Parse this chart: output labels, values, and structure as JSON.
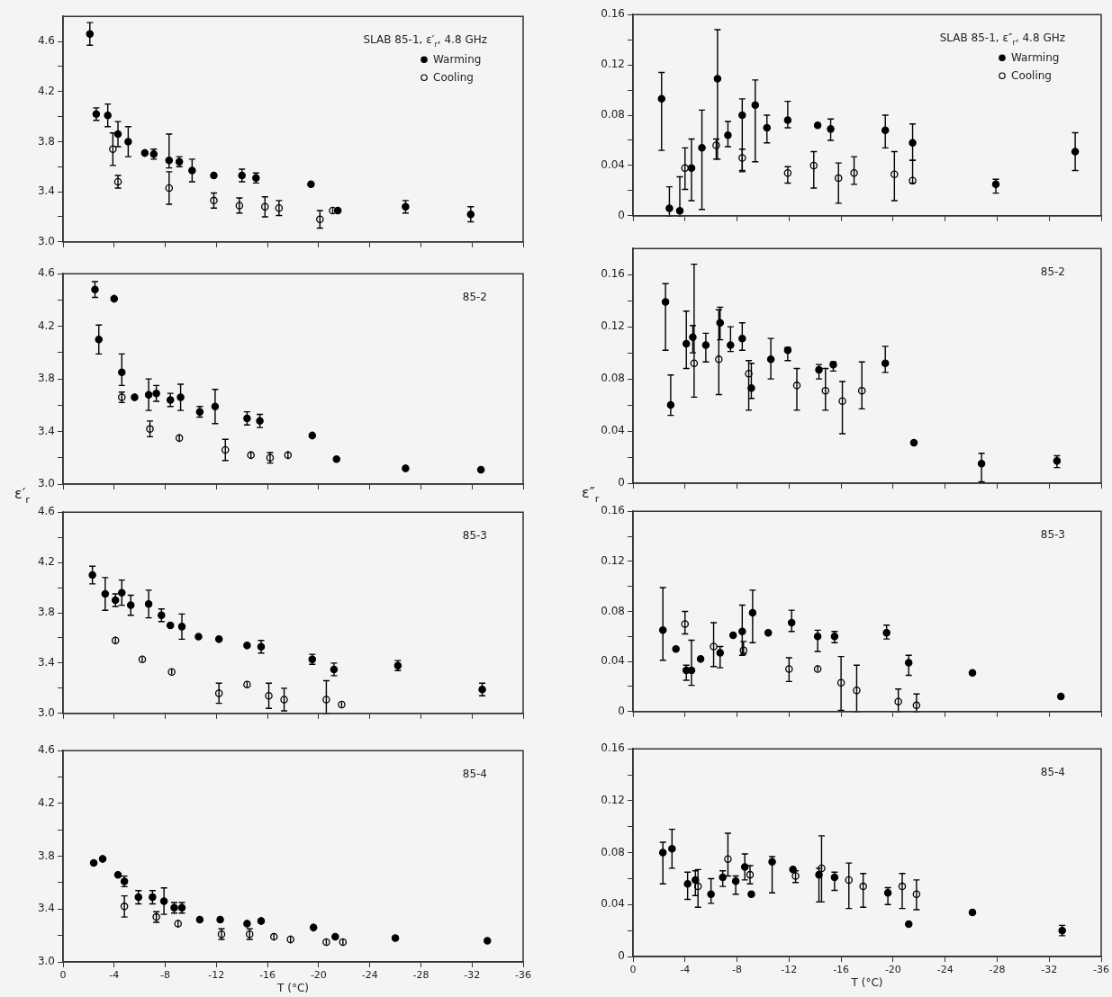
{
  "chart_data": [
    {
      "type": "scatter",
      "title": "SLAB 85-1, ε′$_{r}$, 4.8 GHz",
      "legend": "top right",
      "marker": "circle",
      "tick_labels": "y",
      "xlim": [
        0,
        -36
      ],
      "xticks": [
        0,
        -4,
        -8,
        -12,
        -16,
        -20,
        -24,
        -28,
        -32,
        -36
      ],
      "ylim": [
        3.0,
        4.8
      ],
      "yticks": [
        {
          "value": 3,
          "label": "3.0"
        },
        {
          "value": 3.2,
          "label": null
        },
        3.4,
        {
          "value": 3.6,
          "label": null
        },
        3.8,
        {
          "value": 4,
          "label": null
        },
        4.2,
        {
          "value": 4.4,
          "label": null
        },
        4.6
      ],
      "series": [
        {
          "name": "Warming",
          "color": "#000000",
          "x": [
            -2.1,
            -2.6,
            -3.5,
            -4.3,
            -5.1,
            -6.4,
            -7.1,
            -8.3,
            -9.1,
            -10.1,
            -11.8,
            -14.0,
            -15.1,
            -19.4,
            -21.5,
            -26.8,
            -31.9
          ],
          "values": [
            4.66,
            4.02,
            4.01,
            3.86,
            3.8,
            3.71,
            3.7,
            3.65,
            3.64,
            3.57,
            3.53,
            3.53,
            3.51,
            3.46,
            3.25,
            3.28,
            3.22
          ],
          "errors": [
            0.09,
            0.05,
            0.09,
            0.1,
            0.12,
            0.03,
            0.04,
            [
              3.59,
              3.86
            ],
            0.04,
            0.09,
            0.02,
            0.05,
            0.04,
            0.02,
            0.02,
            0.05,
            0.06
          ]
        },
        {
          "name": "Cooling",
          "color": "#000000",
          "x": [
            -3.9,
            -4.3,
            -8.3,
            -11.8,
            -13.8,
            -15.8,
            -16.9,
            -20.1,
            -21.1
          ],
          "values": [
            3.74,
            3.48,
            3.43,
            3.33,
            3.29,
            3.28,
            3.27,
            3.18,
            3.25
          ],
          "errors": [
            0.13,
            0.05,
            0.13,
            0.06,
            0.06,
            0.08,
            0.06,
            0.07,
            0.02
          ]
        }
      ]
    },
    {
      "type": "scatter",
      "title": "SLAB 85-1, ε″$_{r}$, 4.8 GHz",
      "legend": "top right",
      "marker": "circle",
      "tick_labels": "y",
      "xlim": [
        0,
        -36
      ],
      "xticks": [
        0,
        -4,
        -8,
        -12,
        -16,
        -20,
        -24,
        -28,
        -32,
        -36
      ],
      "ylim": [
        0,
        0.16
      ],
      "yticks": [
        0,
        {
          "value": 0.02,
          "label": null
        },
        0.04,
        {
          "value": 0.06,
          "label": null
        },
        0.08,
        {
          "value": 0.1,
          "label": null
        },
        0.12,
        {
          "value": 0.14,
          "label": null
        },
        0.16
      ],
      "series": [
        {
          "name": "Warming",
          "color": "#000000",
          "x": [
            -2.2,
            -2.8,
            -3.6,
            -4.5,
            -5.3,
            -6.5,
            -7.3,
            -8.4,
            -9.4,
            -10.3,
            -11.9,
            -14.2,
            -15.2,
            -19.4,
            -21.5,
            -27.9,
            -34.0
          ],
          "values": [
            0.093,
            0.006,
            0.004,
            0.038,
            0.054,
            0.109,
            0.064,
            0.08,
            0.088,
            0.07,
            0.076,
            0.072,
            0.069,
            0.068,
            0.058,
            0.025,
            0.051
          ],
          "errors": [
            [
              0.052,
              0.114
            ],
            [
              0,
              0.023
            ],
            [
              0,
              0.031
            ],
            [
              0.012,
              0.061
            ],
            [
              0.005,
              0.084
            ],
            [
              0.045,
              0.148
            ],
            [
              0.055,
              0.075
            ],
            [
              0.036,
              0.093
            ],
            [
              0.043,
              0.108
            ],
            [
              0.058,
              0.08
            ],
            [
              0.07,
              0.091
            ],
            0.002,
            [
              0.06,
              0.077
            ],
            [
              0.054,
              0.08
            ],
            [
              0.044,
              0.073
            ],
            [
              0.018,
              0.029
            ],
            [
              0.036,
              0.066
            ]
          ]
        },
        {
          "name": "Cooling",
          "color": "#000000",
          "x": [
            -4.0,
            -6.4,
            -8.4,
            -11.9,
            -13.9,
            -15.8,
            -17.0,
            -20.1,
            -21.5
          ],
          "values": [
            0.038,
            0.056,
            0.046,
            0.034,
            0.04,
            0.03,
            0.034,
            0.033,
            0.028
          ],
          "errors": [
            [
              0.021,
              0.054
            ],
            [
              0.045,
              0.061
            ],
            [
              0.035,
              0.053
            ],
            [
              0.026,
              0.039
            ],
            [
              0.022,
              0.051
            ],
            [
              0.01,
              0.042
            ],
            [
              0.025,
              0.047
            ],
            [
              0.012,
              0.051
            ],
            [
              0.026,
              0.044
            ]
          ]
        }
      ]
    },
    {
      "type": "scatter",
      "title": "85-2",
      "ylabel": "ε′$_{r}$",
      "marker": "circle",
      "tick_labels": "y",
      "xlim": [
        0,
        -36
      ],
      "xticks": [
        0,
        -4,
        -8,
        -12,
        -16,
        -20,
        -24,
        -28,
        -32,
        -36
      ],
      "ylim": [
        3.0,
        4.6
      ],
      "yticks": [
        {
          "value": 3,
          "label": "3.0"
        },
        {
          "value": 3.2,
          "label": null
        },
        3.4,
        {
          "value": 3.6,
          "label": null
        },
        3.8,
        {
          "value": 4,
          "label": null
        },
        4.2,
        {
          "value": 4.4,
          "label": null
        },
        4.6
      ],
      "series": [
        {
          "color": "#000000",
          "x": [
            -2.5,
            -4.0,
            -2.8,
            -4.6,
            -5.6,
            -6.7,
            -7.3,
            -8.4,
            -9.2,
            -10.7,
            -11.9,
            -14.4,
            -15.4,
            -19.5,
            -21.4,
            -26.8,
            -32.7
          ],
          "values": [
            4.48,
            4.41,
            4.1,
            3.85,
            3.66,
            3.68,
            3.69,
            3.64,
            3.66,
            3.55,
            3.59,
            3.5,
            3.48,
            3.37,
            3.19,
            3.12,
            3.11
          ],
          "errors": [
            0.06,
            0.03,
            0.11,
            [
              3.75,
              3.99
            ],
            0.03,
            0.12,
            0.06,
            0.05,
            0.1,
            0.04,
            0.13,
            0.05,
            0.05,
            0.03,
            0.02,
            0.03,
            0.02
          ]
        },
        {
          "color": "#000000",
          "x": [
            -4.6,
            -6.8,
            -9.1,
            -12.7,
            -14.7,
            -16.2,
            -17.6
          ],
          "values": [
            3.66,
            3.42,
            3.35,
            3.26,
            3.22,
            3.2,
            3.22
          ],
          "errors": [
            0.04,
            0.06,
            0.03,
            0.08,
            0.03,
            0.04,
            0.03
          ]
        }
      ]
    },
    {
      "type": "scatter",
      "title": "85-2",
      "ylabel": "ε″$_{r}$",
      "marker": "circle",
      "tick_labels": "y",
      "xlim": [
        0,
        -36
      ],
      "xticks": [
        0,
        -4,
        -8,
        -12,
        -16,
        -20,
        -24,
        -28,
        -32,
        -36
      ],
      "ylim": [
        0,
        0.18
      ],
      "yticks": [
        0,
        {
          "value": 0.02,
          "label": null
        },
        0.04,
        {
          "value": 0.06,
          "label": null
        },
        0.08,
        {
          "value": 0.1,
          "label": null
        },
        0.12,
        {
          "value": 0.14,
          "label": null
        },
        0.16
      ],
      "series": [
        {
          "color": "#000000",
          "x": [
            -2.5,
            -2.9,
            -4.1,
            -4.6,
            -5.6,
            -6.7,
            -7.5,
            -8.4,
            -9.1,
            -10.6,
            -11.9,
            -14.3,
            -15.4,
            -19.4,
            -21.6,
            -26.8,
            -32.6
          ],
          "values": [
            0.139,
            0.06,
            0.107,
            0.112,
            0.106,
            0.123,
            0.106,
            0.111,
            0.073,
            0.095,
            0.102,
            0.087,
            0.091,
            0.092,
            0.031,
            0.015,
            0.017
          ],
          "errors": [
            [
              0.102,
              0.153
            ],
            [
              0.052,
              0.083
            ],
            [
              0.088,
              0.132
            ],
            [
              0.1,
              0.121
            ],
            [
              0.093,
              0.115
            ],
            [
              0.11,
              0.135
            ],
            [
              0.101,
              0.12
            ],
            [
              0.102,
              0.123
            ],
            [
              0.065,
              0.092
            ],
            [
              0.08,
              0.111
            ],
            [
              0.094,
              0.104
            ],
            [
              0.08,
              0.091
            ],
            [
              0.086,
              0.093
            ],
            [
              0.085,
              0.105
            ],
            0.001,
            [
              0.001,
              0.023
            ],
            [
              0.012,
              0.021
            ]
          ]
        },
        {
          "color": "#000000",
          "x": [
            -4.7,
            -6.6,
            -8.9,
            -12.6,
            -14.8,
            -16.1,
            -17.6
          ],
          "values": [
            0.092,
            0.095,
            0.084,
            0.075,
            0.071,
            0.063,
            0.071
          ],
          "errors": [
            [
              0.066,
              0.168
            ],
            [
              0.068,
              0.133
            ],
            [
              0.056,
              0.094
            ],
            [
              0.056,
              0.088
            ],
            [
              0.056,
              0.088
            ],
            [
              0.038,
              0.078
            ],
            [
              0.057,
              0.093
            ]
          ]
        }
      ]
    },
    {
      "type": "scatter",
      "title": "85-3",
      "marker": "circle",
      "tick_labels": "y",
      "xlim": [
        0,
        -36
      ],
      "xticks": [
        0,
        -4,
        -8,
        -12,
        -16,
        -20,
        -24,
        -28,
        -32,
        -36
      ],
      "ylim": [
        3.0,
        4.6
      ],
      "yticks": [
        {
          "value": 3,
          "label": "3.0"
        },
        {
          "value": 3.2,
          "label": null
        },
        3.4,
        {
          "value": 3.6,
          "label": null
        },
        3.8,
        {
          "value": 4,
          "label": null
        },
        4.2,
        {
          "value": 4.4,
          "label": null
        },
        4.6
      ],
      "series": [
        {
          "color": "#000000",
          "x": [
            -2.3,
            -3.3,
            -4.1,
            -4.6,
            -5.3,
            -6.7,
            -7.7,
            -8.4,
            -9.3,
            -10.6,
            -12.2,
            -14.4,
            -15.5,
            -19.5,
            -21.2,
            -26.2,
            -32.8
          ],
          "values": [
            4.1,
            3.95,
            3.9,
            3.96,
            3.86,
            3.87,
            3.78,
            3.7,
            3.69,
            3.61,
            3.59,
            3.54,
            3.53,
            3.43,
            3.35,
            3.38,
            3.19
          ],
          "errors": [
            0.07,
            0.13,
            0.05,
            0.1,
            0.08,
            0.11,
            0.05,
            0.02,
            0.1,
            0.02,
            0.03,
            0.03,
            0.05,
            0.04,
            0.05,
            0.04,
            0.05
          ]
        },
        {
          "color": "#000000",
          "x": [
            -4.1,
            -6.2,
            -8.5,
            -12.2,
            -14.4,
            -16.1,
            -17.3,
            -20.6,
            -21.8
          ],
          "values": [
            3.58,
            3.43,
            3.33,
            3.16,
            3.23,
            3.14,
            3.11,
            3.11,
            3.07
          ],
          "errors": [
            0.03,
            0.02,
            0.02,
            0.08,
            0.02,
            0.1,
            0.09,
            [
              3.0,
              3.26
            ],
            0.02
          ]
        }
      ]
    },
    {
      "type": "scatter",
      "title": "85-3",
      "marker": "circle",
      "tick_labels": "y",
      "xlim": [
        0,
        -36
      ],
      "xticks": [
        0,
        -4,
        -8,
        -12,
        -16,
        -20,
        -24,
        -28,
        -32,
        -36
      ],
      "ylim": [
        0,
        0.16
      ],
      "yticks": [
        0,
        {
          "value": 0.02,
          "label": null
        },
        0.04,
        {
          "value": 0.06,
          "label": null
        },
        0.08,
        {
          "value": 0.1,
          "label": null
        },
        0.12,
        {
          "value": 0.14,
          "label": null
        },
        0.16
      ],
      "series": [
        {
          "color": "#000000",
          "x": [
            -2.3,
            -3.3,
            -4.1,
            -4.5,
            -5.2,
            -6.7,
            -7.7,
            -8.4,
            -9.2,
            -10.4,
            -12.2,
            -14.2,
            -15.5,
            -19.5,
            -21.2,
            -26.1,
            -32.9
          ],
          "values": [
            0.065,
            0.05,
            0.033,
            0.033,
            0.042,
            0.047,
            0.061,
            0.064,
            0.079,
            0.063,
            0.071,
            0.06,
            0.06,
            0.063,
            0.039,
            0.031,
            0.012
          ],
          "errors": [
            [
              0.041,
              0.099
            ],
            0.002,
            [
              0.025,
              0.037
            ],
            [
              0.021,
              0.057
            ],
            0.003,
            [
              0.035,
              0.052
            ],
            0.002,
            [
              0.045,
              0.085
            ],
            [
              0.055,
              0.097
            ],
            0.003,
            [
              0.064,
              0.081
            ],
            [
              0.048,
              0.065
            ],
            [
              0.055,
              0.064
            ],
            [
              0.058,
              0.069
            ],
            [
              0.029,
              0.045
            ],
            0.001,
            [
              0.01,
              0.015
            ]
          ]
        },
        {
          "color": "#000000",
          "x": [
            -4.0,
            -6.2,
            -8.5,
            -12.0,
            -14.2,
            -16.0,
            -17.2,
            -20.4,
            -21.8
          ],
          "values": [
            0.07,
            0.052,
            0.049,
            0.034,
            0.034,
            0.023,
            0.017,
            0.008,
            0.005
          ],
          "errors": [
            [
              0.062,
              0.08
            ],
            [
              0.036,
              0.071
            ],
            [
              0.046,
              0.056
            ],
            [
              0.024,
              0.043
            ],
            [
              0.032,
              0.037
            ],
            [
              0.001,
              0.044
            ],
            [
              0,
              0.037
            ],
            [
              0,
              0.018
            ],
            [
              0,
              0.014
            ]
          ]
        }
      ]
    },
    {
      "type": "scatter",
      "title": "85-4",
      "xlabel": "T (°C)",
      "marker": "circle",
      "xlim": [
        0,
        -36
      ],
      "xticks": [
        0,
        -4,
        -8,
        -12,
        -16,
        -20,
        -24,
        -28,
        -32,
        -36
      ],
      "ylim": [
        3.0,
        4.6
      ],
      "yticks": [
        {
          "value": 3,
          "label": "3.0"
        },
        {
          "value": 3.2,
          "label": null
        },
        3.4,
        {
          "value": 3.6,
          "label": null
        },
        3.8,
        {
          "value": 4,
          "label": null
        },
        4.2,
        {
          "value": 4.4,
          "label": null
        },
        4.6
      ],
      "series": [
        {
          "color": "#000000",
          "x": [
            -2.4,
            -3.1,
            -4.3,
            -4.8,
            -5.9,
            -7.0,
            -7.9,
            -8.7,
            -9.3,
            -10.7,
            -12.3,
            -14.4,
            -15.5,
            -19.6,
            -21.3,
            -26.0,
            -33.2
          ],
          "values": [
            3.75,
            3.78,
            3.66,
            3.61,
            3.49,
            3.49,
            3.46,
            3.41,
            3.41,
            3.32,
            3.32,
            3.29,
            3.31,
            3.26,
            3.19,
            3.18,
            3.16
          ],
          "errors": [
            0.02,
            0.03,
            0.02,
            0.04,
            0.05,
            0.05,
            0.1,
            0.04,
            0.04,
            0.02,
            0.02,
            0.03,
            0.03,
            0.03,
            0.02,
            0.02,
            0.02
          ]
        },
        {
          "color": "#000000",
          "x": [
            -4.8,
            -7.3,
            -9.0,
            -12.4,
            -14.6,
            -16.5,
            -17.8,
            -20.6,
            -21.9
          ],
          "values": [
            3.42,
            3.34,
            3.29,
            3.21,
            3.21,
            3.19,
            3.17,
            3.15,
            3.15
          ],
          "errors": [
            0.08,
            0.04,
            0.03,
            0.04,
            0.04,
            0.02,
            0.03,
            0.02,
            0.02
          ]
        }
      ]
    },
    {
      "type": "scatter",
      "title": "85-4",
      "xlabel": "T (°C)",
      "marker": "circle",
      "xlim": [
        0,
        -36
      ],
      "xticks": [
        0,
        -4,
        -8,
        -12,
        -16,
        -20,
        -24,
        -28,
        -32,
        -36
      ],
      "ylim": [
        0,
        0.16
      ],
      "yticks": [
        0,
        {
          "value": 0.02,
          "label": null
        },
        0.04,
        {
          "value": 0.06,
          "label": null
        },
        0.08,
        {
          "value": 0.1,
          "label": null
        },
        0.12,
        {
          "value": 0.14,
          "label": null
        },
        0.16
      ],
      "series": [
        {
          "color": "#000000",
          "x": [
            -2.3,
            -3.0,
            -4.2,
            -4.8,
            -6.0,
            -6.9,
            -7.9,
            -8.6,
            -9.1,
            -10.7,
            -12.3,
            -14.3,
            -15.5,
            -19.6,
            -21.2,
            -26.1,
            -33.0
          ],
          "values": [
            0.08,
            0.083,
            0.056,
            0.059,
            0.048,
            0.061,
            0.058,
            0.069,
            0.048,
            0.073,
            0.067,
            0.063,
            0.061,
            0.049,
            0.025,
            0.034,
            0.02
          ],
          "errors": [
            [
              0.056,
              0.088
            ],
            [
              0.068,
              0.098
            ],
            [
              0.044,
              0.065
            ],
            [
              0.047,
              0.066
            ],
            [
              0.041,
              0.06
            ],
            [
              0.054,
              0.066
            ],
            [
              0.048,
              0.062
            ],
            [
              0.059,
              0.079
            ],
            0.001,
            [
              0.049,
              0.077
            ],
            0.002,
            [
              0.042,
              0.068
            ],
            [
              0.051,
              0.065
            ],
            [
              0.04,
              0.053
            ],
            0.001,
            0.002,
            [
              0.016,
              0.024
            ]
          ]
        },
        {
          "color": "#000000",
          "x": [
            -5.0,
            -7.3,
            -9.0,
            -12.5,
            -14.5,
            -16.6,
            -17.7,
            -20.7,
            -21.8
          ],
          "values": [
            0.054,
            0.075,
            0.063,
            0.062,
            0.068,
            0.059,
            0.054,
            0.054,
            0.048
          ],
          "errors": [
            [
              0.038,
              0.067
            ],
            [
              0.062,
              0.095
            ],
            [
              0.056,
              0.07
            ],
            [
              0.057,
              0.066
            ],
            [
              0.042,
              0.093
            ],
            [
              0.037,
              0.072
            ],
            [
              0.038,
              0.064
            ],
            [
              0.037,
              0.064
            ],
            [
              0.036,
              0.059
            ]
          ]
        }
      ]
    }
  ]
}
